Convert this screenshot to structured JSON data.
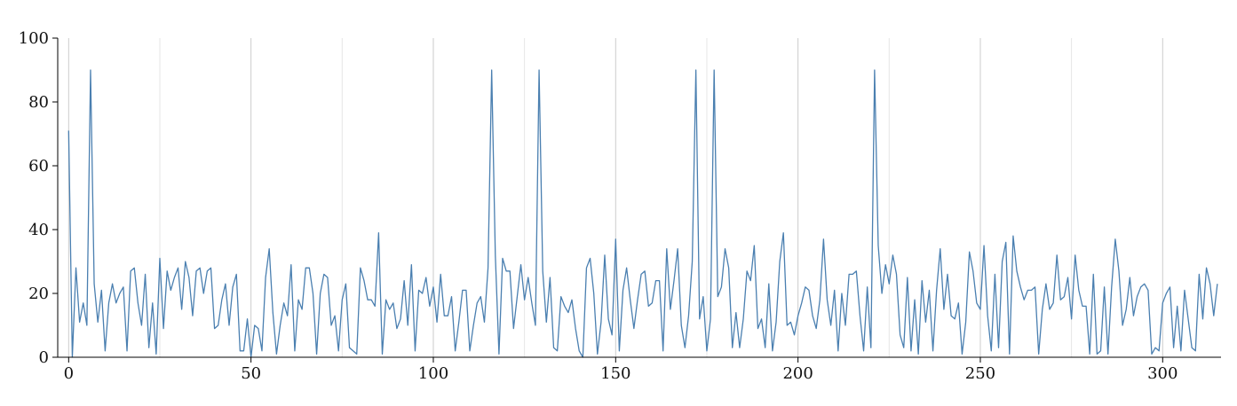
{
  "chart_data": {
    "type": "line",
    "title": "",
    "xlabel": "",
    "ylabel": "",
    "xlim": [
      -3,
      316
    ],
    "ylim": [
      0,
      100
    ],
    "x_ticks": [
      0,
      50,
      100,
      150,
      200,
      250,
      300
    ],
    "x_tick_labels": [
      "0",
      "50",
      "100",
      "150",
      "200",
      "250",
      "300"
    ],
    "y_ticks": [
      0,
      20,
      40,
      60,
      80,
      100
    ],
    "y_tick_labels": [
      "0",
      "20",
      "40",
      "60",
      "80",
      "100"
    ],
    "grid": {
      "vertical": true,
      "minor_vertical_every": 25,
      "major_vertical_every": 50,
      "horizontal": false
    },
    "colors": {
      "line": "#4a7fb0",
      "grid_major": "#cccccc",
      "grid_minor": "#e6e6e6",
      "axis": "#000000"
    },
    "series": [
      {
        "x_start": 0,
        "x_step": 1,
        "values": [
          71,
          0,
          28,
          11,
          17,
          10,
          90,
          23,
          11,
          21,
          2,
          17,
          23,
          17,
          20,
          22,
          2,
          27,
          28,
          17,
          10,
          26,
          3,
          17,
          1,
          31,
          9,
          27,
          21,
          25,
          28,
          15,
          30,
          25,
          13,
          27,
          28,
          20,
          27,
          28,
          9,
          10,
          18,
          23,
          10,
          22,
          26,
          2,
          2,
          12,
          0,
          10,
          9,
          2,
          25,
          34,
          14,
          1,
          10,
          17,
          13,
          29,
          2,
          18,
          15,
          28,
          28,
          20,
          1,
          20,
          26,
          25,
          10,
          13,
          2,
          18,
          23,
          3,
          2,
          1,
          28,
          24,
          18,
          18,
          16,
          39,
          1,
          18,
          15,
          17,
          9,
          12,
          24,
          10,
          29,
          2,
          21,
          20,
          25,
          16,
          22,
          11,
          26,
          13,
          13,
          19,
          2,
          11,
          21,
          21,
          2,
          10,
          17,
          19,
          11,
          28,
          90,
          32,
          1,
          31,
          27,
          27,
          9,
          19,
          29,
          18,
          25,
          17,
          10,
          90,
          27,
          11,
          25,
          3,
          2,
          19,
          16,
          14,
          18,
          9,
          2,
          0,
          28,
          31,
          20,
          1,
          11,
          32,
          12,
          7,
          37,
          2,
          21,
          28,
          18,
          9,
          18,
          26,
          27,
          16,
          17,
          24,
          24,
          2,
          34,
          15,
          24,
          34,
          10,
          3,
          13,
          30,
          90,
          12,
          19,
          2,
          12,
          90,
          19,
          22,
          34,
          28,
          3,
          14,
          3,
          12,
          27,
          24,
          35,
          9,
          12,
          3,
          23,
          2,
          11,
          30,
          39,
          10,
          11,
          7,
          13,
          17,
          22,
          21,
          13,
          9,
          18,
          37,
          18,
          10,
          21,
          2,
          20,
          10,
          26,
          26,
          27,
          13,
          2,
          22,
          3,
          90,
          35,
          20,
          29,
          23,
          32,
          26,
          7,
          3,
          25,
          2,
          18,
          1,
          24,
          11,
          21,
          2,
          21,
          34,
          15,
          26,
          13,
          12,
          17,
          1,
          11,
          33,
          27,
          17,
          15,
          35,
          13,
          2,
          26,
          3,
          30,
          36,
          1,
          38,
          27,
          22,
          18,
          21,
          21,
          22,
          1,
          15,
          23,
          15,
          17,
          32,
          18,
          19,
          25,
          12,
          32,
          21,
          16,
          16,
          1,
          26,
          1,
          2,
          22,
          1,
          22,
          37,
          27,
          10,
          15,
          25,
          13,
          19,
          22,
          23,
          21,
          1,
          3,
          2,
          17,
          20,
          22,
          3,
          16,
          2,
          21,
          12,
          3,
          2,
          26,
          12,
          28,
          23,
          13,
          23
        ]
      }
    ]
  }
}
